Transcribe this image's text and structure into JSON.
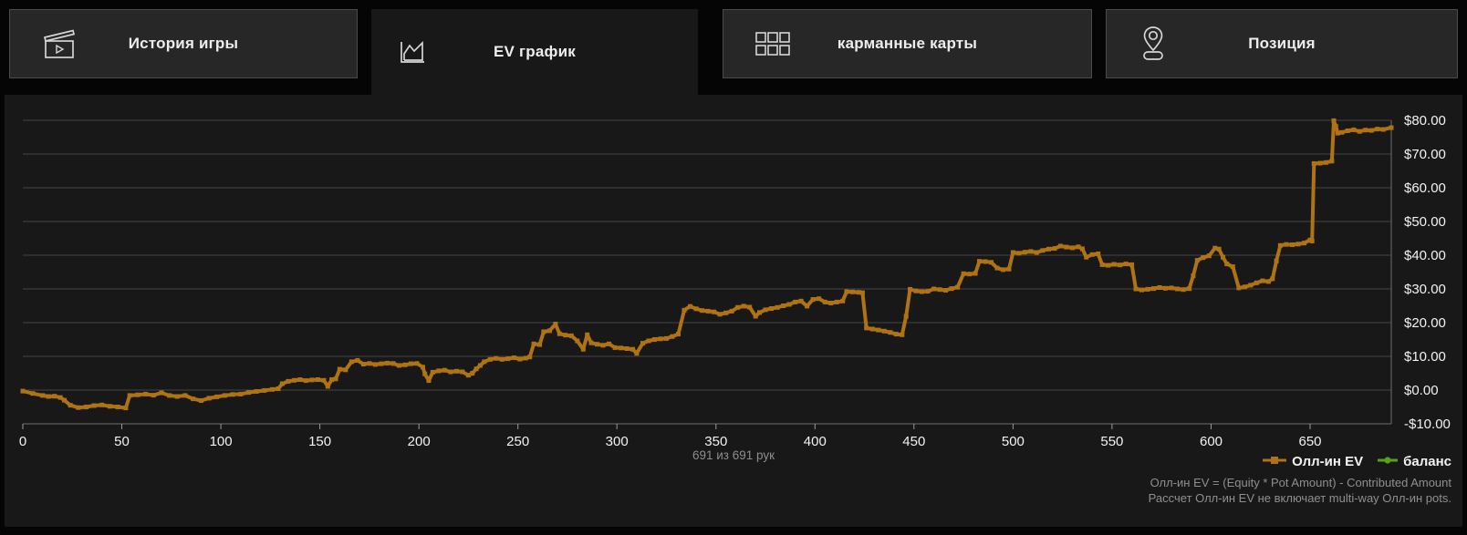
{
  "tabs": [
    {
      "label": "История игры",
      "icon": "clapperboard-icon",
      "active": false
    },
    {
      "label": "EV график",
      "icon": "line-chart-icon",
      "active": true
    },
    {
      "label": "карманные карты",
      "icon": "cards-grid-icon",
      "active": false
    },
    {
      "label": "Позиция",
      "icon": "position-pin-icon",
      "active": false
    }
  ],
  "caption": "691 из 691 рук",
  "footnote": {
    "line1": "Олл-ин EV = (Equity * Pot Amount) - Contributed Amount",
    "line2": "Рассчет Олл-ин EV не включает multi-way Олл-ин pots."
  },
  "colors": {
    "accent_orange": "#b07314",
    "accent_green": "#55a21c",
    "grid": "#454545",
    "axis": "#6e6e6e",
    "tick": "#9a9a9a",
    "tick_label": "#f2f2f2",
    "panel_bg": "#181818",
    "tab_bg": "#272727",
    "page_bg": "#050505"
  },
  "chart_data": {
    "type": "line",
    "title": "",
    "xlabel": "",
    "ylabel": "",
    "grid": true,
    "legend_position": "bottom-right",
    "xlim": [
      0,
      691
    ],
    "ylim": [
      -10,
      80
    ],
    "x_ticks": [
      0,
      50,
      100,
      150,
      200,
      250,
      300,
      350,
      400,
      450,
      500,
      550,
      600,
      650
    ],
    "y_ticks": [
      -10,
      0,
      10,
      20,
      30,
      40,
      50,
      60,
      70,
      80
    ],
    "y_tick_labels": [
      "-$10.00",
      "$0.00",
      "$10.00",
      "$20.00",
      "$30.00",
      "$40.00",
      "$50.00",
      "$60.00",
      "$70.00",
      "$80.00"
    ],
    "series": [
      {
        "name": "Олл-ин EV",
        "color": "#b07314",
        "points": [
          [
            0,
            -0.3
          ],
          [
            5,
            -1
          ],
          [
            10,
            -1.6
          ],
          [
            13,
            -1.9
          ],
          [
            16,
            -1.8
          ],
          [
            19,
            -2.2
          ],
          [
            21,
            -3
          ],
          [
            24,
            -4.5
          ],
          [
            28,
            -5.2
          ],
          [
            32,
            -5
          ],
          [
            36,
            -4.6
          ],
          [
            40,
            -4.4
          ],
          [
            44,
            -4.8
          ],
          [
            48,
            -5
          ],
          [
            52,
            -5.3
          ],
          [
            54,
            -1.6
          ],
          [
            58,
            -1.4
          ],
          [
            62,
            -1.2
          ],
          [
            66,
            -1.5
          ],
          [
            70,
            -0.8
          ],
          [
            74,
            -1.6
          ],
          [
            78,
            -1.9
          ],
          [
            82,
            -1.6
          ],
          [
            86,
            -2.6
          ],
          [
            90,
            -3.1
          ],
          [
            94,
            -2.4
          ],
          [
            98,
            -2
          ],
          [
            102,
            -1.6
          ],
          [
            106,
            -1.3
          ],
          [
            110,
            -1.2
          ],
          [
            114,
            -0.7
          ],
          [
            118,
            -0.4
          ],
          [
            122,
            -0.1
          ],
          [
            126,
            0.2
          ],
          [
            129,
            0.4
          ],
          [
            131,
            1.9
          ],
          [
            134,
            2.6
          ],
          [
            137,
            2.9
          ],
          [
            140,
            3.1
          ],
          [
            143,
            2.8
          ],
          [
            146,
            3
          ],
          [
            149,
            3.1
          ],
          [
            152,
            2.9
          ],
          [
            154,
            1.1
          ],
          [
            156,
            3.1
          ],
          [
            158,
            3.3
          ],
          [
            160,
            6.2
          ],
          [
            163,
            6
          ],
          [
            166,
            8.4
          ],
          [
            169,
            8.8
          ],
          [
            172,
            7.7
          ],
          [
            175,
            7.9
          ],
          [
            178,
            7.6
          ],
          [
            181,
            7.8
          ],
          [
            184,
            8
          ],
          [
            187,
            7.9
          ],
          [
            190,
            7.3
          ],
          [
            193,
            7.5
          ],
          [
            196,
            7.8
          ],
          [
            199,
            7.9
          ],
          [
            202,
            6.8
          ],
          [
            203,
            4.8
          ],
          [
            205,
            2.8
          ],
          [
            207,
            5.3
          ],
          [
            210,
            5.7
          ],
          [
            213,
            5.9
          ],
          [
            216,
            5.4
          ],
          [
            219,
            5.6
          ],
          [
            222,
            5.4
          ],
          [
            225,
            4.4
          ],
          [
            227,
            5
          ],
          [
            229,
            6.3
          ],
          [
            231,
            7.3
          ],
          [
            233,
            8.4
          ],
          [
            236,
            9.1
          ],
          [
            239,
            9.4
          ],
          [
            242,
            9.1
          ],
          [
            245,
            9.3
          ],
          [
            248,
            9.6
          ],
          [
            251,
            9.2
          ],
          [
            254,
            9.5
          ],
          [
            256,
            9.8
          ],
          [
            258,
            13.7
          ],
          [
            261,
            13.5
          ],
          [
            263,
            17.3
          ],
          [
            266,
            17.6
          ],
          [
            269,
            19.6
          ],
          [
            271,
            16.7
          ],
          [
            274,
            16.3
          ],
          [
            277,
            16.1
          ],
          [
            280,
            14.6
          ],
          [
            283,
            12.1
          ],
          [
            285,
            16.4
          ],
          [
            287,
            14
          ],
          [
            290,
            13.6
          ],
          [
            293,
            13.3
          ],
          [
            296,
            13.7
          ],
          [
            299,
            12.6
          ],
          [
            302,
            12.5
          ],
          [
            305,
            12.3
          ],
          [
            308,
            12.1
          ],
          [
            310,
            10.9
          ],
          [
            313,
            13.9
          ],
          [
            316,
            14.6
          ],
          [
            319,
            15
          ],
          [
            322,
            15.2
          ],
          [
            325,
            15.3
          ],
          [
            328,
            15.9
          ],
          [
            331,
            16.6
          ],
          [
            334,
            23.7
          ],
          [
            337,
            24.8
          ],
          [
            340,
            24.1
          ],
          [
            343,
            23.6
          ],
          [
            346,
            23.4
          ],
          [
            349,
            23.2
          ],
          [
            352,
            22.5
          ],
          [
            355,
            22.9
          ],
          [
            358,
            23.4
          ],
          [
            361,
            24.5
          ],
          [
            364,
            24.9
          ],
          [
            367,
            24.6
          ],
          [
            370,
            21.9
          ],
          [
            372,
            23
          ],
          [
            375,
            23.8
          ],
          [
            378,
            24.2
          ],
          [
            381,
            24.5
          ],
          [
            384,
            25
          ],
          [
            387,
            25.4
          ],
          [
            390,
            26.1
          ],
          [
            393,
            26.4
          ],
          [
            396,
            24.9
          ],
          [
            399,
            26.9
          ],
          [
            402,
            27.1
          ],
          [
            405,
            26.1
          ],
          [
            408,
            25.8
          ],
          [
            411,
            26.1
          ],
          [
            414,
            26.4
          ],
          [
            416,
            29.2
          ],
          [
            419,
            29.1
          ],
          [
            422,
            29
          ],
          [
            424,
            28.9
          ],
          [
            426,
            18.4
          ],
          [
            429,
            18.1
          ],
          [
            432,
            17.8
          ],
          [
            435,
            17.5
          ],
          [
            438,
            17.1
          ],
          [
            441,
            16.6
          ],
          [
            444,
            16.4
          ],
          [
            446,
            21.9
          ],
          [
            448,
            29.9
          ],
          [
            451,
            29.4
          ],
          [
            454,
            29.2
          ],
          [
            457,
            29.3
          ],
          [
            460,
            30
          ],
          [
            463,
            29.8
          ],
          [
            466,
            29.6
          ],
          [
            469,
            30.1
          ],
          [
            472,
            30.5
          ],
          [
            475,
            34.5
          ],
          [
            478,
            34.4
          ],
          [
            481,
            34.6
          ],
          [
            483,
            38.2
          ],
          [
            486,
            38.1
          ],
          [
            489,
            37.9
          ],
          [
            492,
            36.2
          ],
          [
            495,
            35.7
          ],
          [
            498,
            35.9
          ],
          [
            500,
            40.8
          ],
          [
            503,
            40.6
          ],
          [
            506,
            40.9
          ],
          [
            509,
            41.1
          ],
          [
            512,
            40.8
          ],
          [
            515,
            41.4
          ],
          [
            518,
            41.8
          ],
          [
            521,
            42
          ],
          [
            524,
            42.7
          ],
          [
            527,
            42.4
          ],
          [
            530,
            42.2
          ],
          [
            533,
            42.5
          ],
          [
            535,
            41.9
          ],
          [
            537,
            39.4
          ],
          [
            540,
            40.2
          ],
          [
            543,
            40.4
          ],
          [
            545,
            37.2
          ],
          [
            548,
            37
          ],
          [
            551,
            37.3
          ],
          [
            554,
            37.1
          ],
          [
            557,
            37.4
          ],
          [
            560,
            37.2
          ],
          [
            562,
            30
          ],
          [
            565,
            29.7
          ],
          [
            568,
            29.9
          ],
          [
            571,
            30.1
          ],
          [
            574,
            30.4
          ],
          [
            577,
            30.2
          ],
          [
            580,
            30.3
          ],
          [
            583,
            30
          ],
          [
            586,
            29.8
          ],
          [
            589,
            30.1
          ],
          [
            591,
            33.9
          ],
          [
            593,
            38.5
          ],
          [
            596,
            39.3
          ],
          [
            599,
            39.8
          ],
          [
            602,
            42.1
          ],
          [
            604,
            41.8
          ],
          [
            606,
            39.4
          ],
          [
            608,
            37.4
          ],
          [
            611,
            36.6
          ],
          [
            614,
            30.3
          ],
          [
            617,
            30.6
          ],
          [
            620,
            31.1
          ],
          [
            623,
            31.8
          ],
          [
            626,
            32.4
          ],
          [
            629,
            32.2
          ],
          [
            631,
            33
          ],
          [
            633,
            38.3
          ],
          [
            635,
            42.9
          ],
          [
            638,
            43.2
          ],
          [
            641,
            43.1
          ],
          [
            644,
            43.3
          ],
          [
            647,
            43.6
          ],
          [
            650,
            44.5
          ],
          [
            651,
            44.2
          ],
          [
            652,
            67.2
          ],
          [
            655,
            67.3
          ],
          [
            658,
            67.5
          ],
          [
            661,
            67.9
          ],
          [
            662,
            79.9
          ],
          [
            663,
            78.2
          ],
          [
            664,
            76.2
          ],
          [
            666,
            76.4
          ],
          [
            669,
            76.9
          ],
          [
            672,
            77.2
          ],
          [
            675,
            76.7
          ],
          [
            678,
            77.1
          ],
          [
            681,
            77
          ],
          [
            684,
            77.4
          ],
          [
            687,
            77.3
          ],
          [
            691,
            77.8
          ]
        ]
      },
      {
        "name": "баланс",
        "color": "#55a21c",
        "points": []
      }
    ]
  }
}
